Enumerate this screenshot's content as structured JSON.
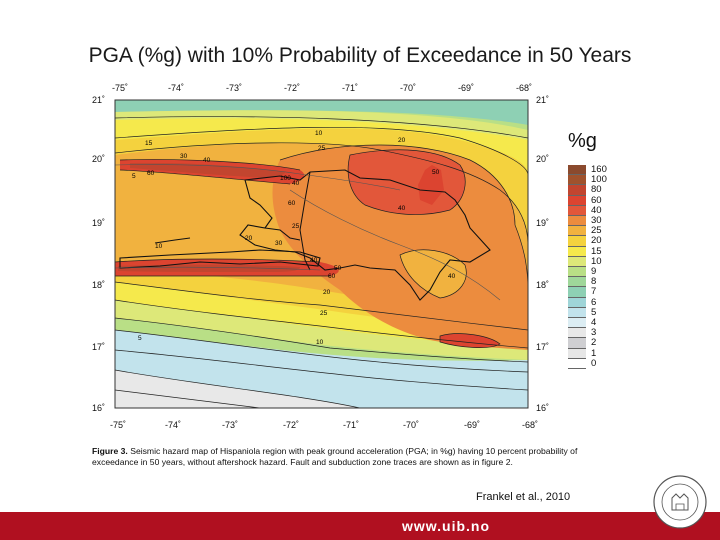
{
  "title": "PGA (%g) with 10% Probability of Exceedance in 50 Years",
  "axes": {
    "lon_ticks_top": [
      "-75˚",
      "-74˚",
      "-73˚",
      "-72˚",
      "-71˚",
      "-70˚",
      "-69˚",
      "-68˚"
    ],
    "lon_ticks_bottom": [
      "-75˚",
      "-74˚",
      "-73˚",
      "-72˚",
      "-71˚",
      "-70˚",
      "-69˚",
      "-68˚"
    ],
    "lat_ticks": [
      "21˚",
      "20˚",
      "19˚",
      "18˚",
      "17˚",
      "16˚"
    ]
  },
  "contour_labels": [
    "10",
    "15",
    "20",
    "25",
    "30",
    "40",
    "50",
    "60",
    "100",
    "5",
    "40",
    "40",
    "60",
    "30",
    "25",
    "20",
    "10",
    "50",
    "40",
    "60",
    "40",
    "20",
    "10",
    "25",
    "5"
  ],
  "legend": {
    "title": "%g",
    "bins": [
      {
        "label": "160",
        "color": "#8b4a2e"
      },
      {
        "label": "100",
        "color": "#a0522d"
      },
      {
        "label": "80",
        "color": "#c2452f"
      },
      {
        "label": "60",
        "color": "#dc4430"
      },
      {
        "label": "40",
        "color": "#e2573a"
      },
      {
        "label": "30",
        "color": "#ec8c3e"
      },
      {
        "label": "25",
        "color": "#f1b23f"
      },
      {
        "label": "20",
        "color": "#f4d23e"
      },
      {
        "label": "15",
        "color": "#f5e94c"
      },
      {
        "label": "10",
        "color": "#dde879"
      },
      {
        "label": "9",
        "color": "#b9df86"
      },
      {
        "label": "8",
        "color": "#9fd79a"
      },
      {
        "label": "7",
        "color": "#8ed0b4"
      },
      {
        "label": "6",
        "color": "#9fd5d8"
      },
      {
        "label": "5",
        "color": "#c2e3ec"
      },
      {
        "label": "4",
        "color": "#dcedf3"
      },
      {
        "label": "3",
        "color": "#e8e8e8"
      },
      {
        "label": "2",
        "color": "#cfcfd2"
      },
      {
        "label": "1",
        "color": "#e6e6e6"
      },
      {
        "label": "0",
        "color": "#ffffff"
      }
    ]
  },
  "caption": {
    "figure_label": "Figure 3.",
    "text": "Seismic hazard map of Hispaniola region with peak ground acceleration (PGA; in %g) having 10 percent probability of exceedance in 50 years, without aftershock hazard. Fault and subduction zone traces are shown as in figure 2."
  },
  "citation": "Frankel et al., 2010",
  "footer": {
    "url": "www.uib.no",
    "bar_color": "#b01020"
  },
  "seal": {
    "name": "university-seal",
    "text": "UNIVERSITAS BERGENSIS"
  }
}
